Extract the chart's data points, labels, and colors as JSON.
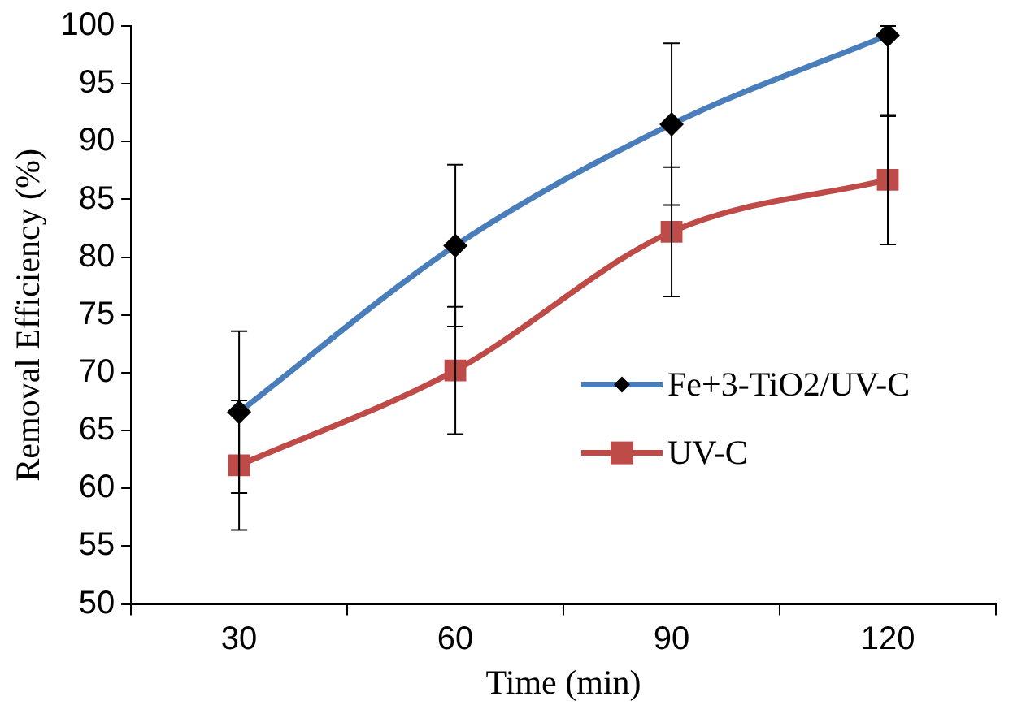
{
  "chart_data": {
    "type": "line",
    "xlabel": "Time (min)",
    "ylabel": "Removal Efficiency (%)",
    "categories": [
      "30",
      "60",
      "90",
      "120"
    ],
    "ylim": [
      50,
      100
    ],
    "yticks": [
      50,
      55,
      60,
      65,
      70,
      75,
      80,
      85,
      90,
      95,
      100
    ],
    "grid": false,
    "legend": "bottom right",
    "series": [
      {
        "name": "Fe+3-TiO2/UV-C",
        "color": "#4a7ebb",
        "marker": "diamond",
        "values": [
          66.6,
          81,
          91.5,
          99.2
        ],
        "errors": [
          7,
          7,
          7,
          [
            92.2,
            100
          ]
        ]
      },
      {
        "name": "UV-C",
        "color": "#be4b48",
        "marker": "square",
        "values": [
          62,
          70.2,
          82.2,
          86.7
        ],
        "errors": [
          5.6,
          5.5,
          5.6,
          5.6
        ]
      }
    ]
  }
}
